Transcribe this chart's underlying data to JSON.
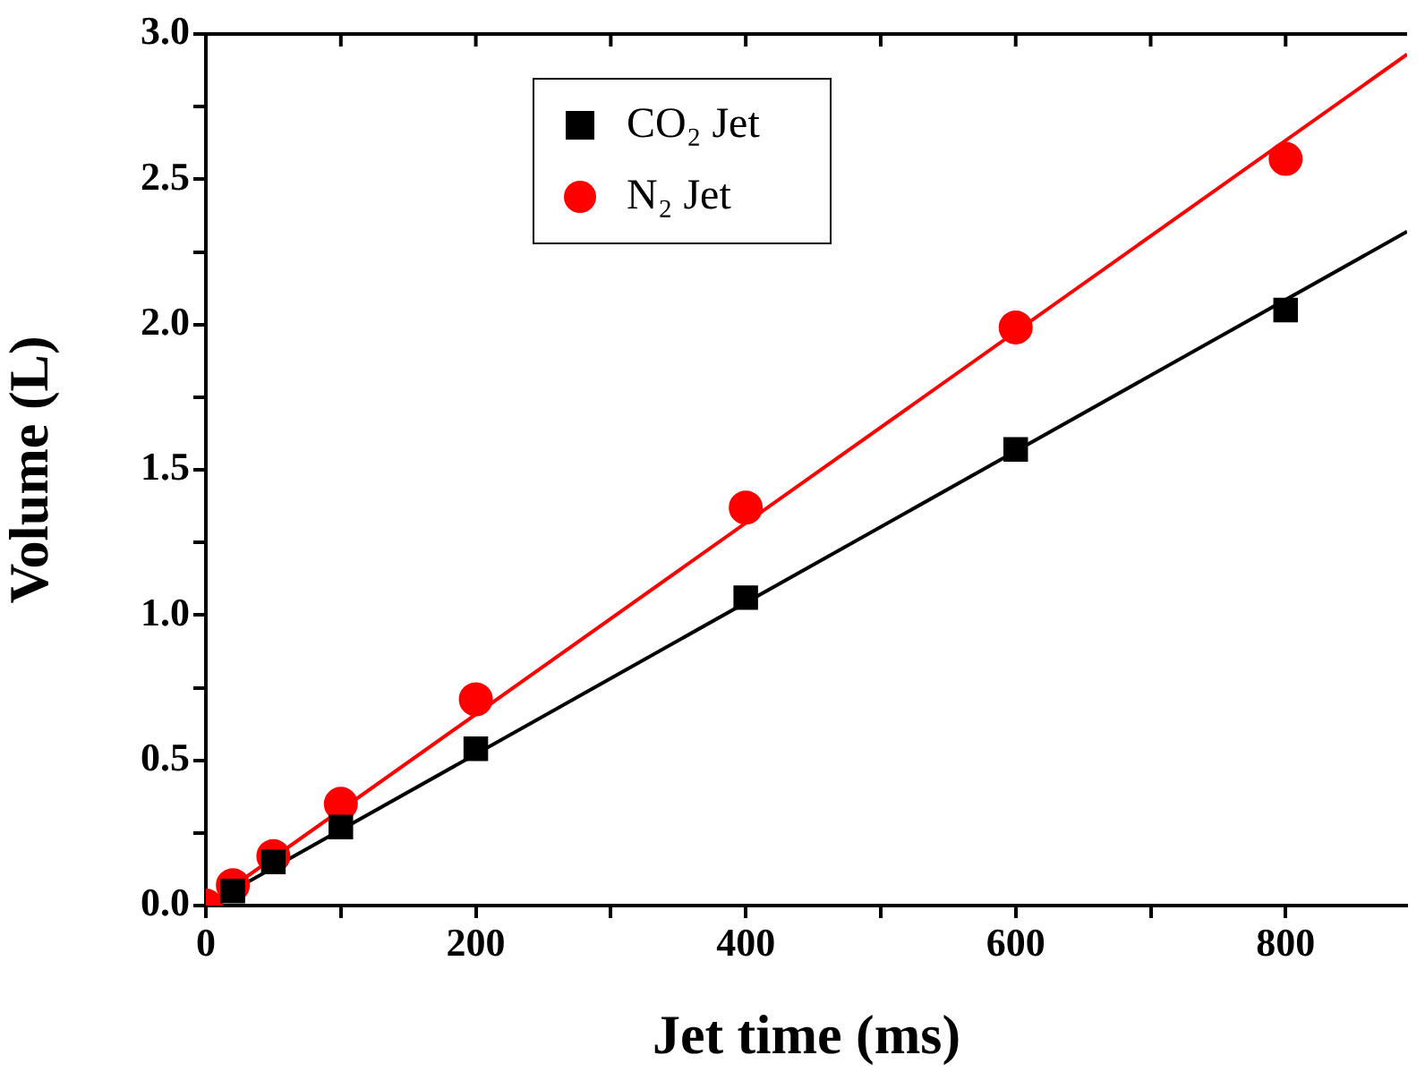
{
  "chart_data": {
    "type": "scatter",
    "xlabel": "Jet time (ms)",
    "ylabel": "Volume (L)",
    "xlim": [
      0,
      890
    ],
    "ylim": [
      0,
      3.0
    ],
    "xticks": [
      0,
      {
        "value": 100,
        "label": null
      },
      200,
      {
        "value": 300,
        "label": null
      },
      400,
      {
        "value": 500,
        "label": null
      },
      600,
      {
        "value": 700,
        "label": null
      },
      800
    ],
    "yticks": [
      {
        "value": 0,
        "label": "0.0"
      },
      {
        "value": 0.25,
        "label": null
      },
      {
        "value": 0.5,
        "label": "0.5"
      },
      {
        "value": 0.75,
        "label": null
      },
      {
        "value": 1,
        "label": "1.0"
      },
      {
        "value": 1.25,
        "label": null
      },
      {
        "value": 1.5,
        "label": "1.5"
      },
      {
        "value": 1.75,
        "label": null
      },
      {
        "value": 2,
        "label": "2.0"
      },
      {
        "value": 2.25,
        "label": null
      },
      {
        "value": 2.5,
        "label": "2.5"
      },
      {
        "value": 2.75,
        "label": null
      },
      {
        "value": 3,
        "label": "3.0"
      }
    ],
    "grid": false,
    "legend": "top left",
    "series": [
      {
        "name": "CO₂ Jet",
        "type": "scatter",
        "marker": "square",
        "color": "#000000",
        "x": [
          20,
          50,
          100,
          200,
          400,
          600,
          800
        ],
        "values": [
          0.05,
          0.15,
          0.27,
          0.54,
          1.06,
          1.57,
          2.05
        ]
      },
      {
        "name": "N₂ Jet",
        "type": "scatter",
        "marker": "circle",
        "color": "#ff0000",
        "x": [
          0,
          20,
          50,
          100,
          200,
          400,
          600,
          800
        ],
        "values": [
          0,
          0.07,
          0.17,
          0.35,
          0.71,
          1.37,
          1.99,
          2.57
        ]
      },
      {
        "type": "line",
        "color": "#000000",
        "x": [
          0,
          890
        ],
        "values": [
          0,
          2.32
        ]
      },
      {
        "type": "line",
        "color": "#ff0000",
        "x": [
          0,
          890
        ],
        "values": [
          0,
          2.93
        ]
      }
    ]
  }
}
